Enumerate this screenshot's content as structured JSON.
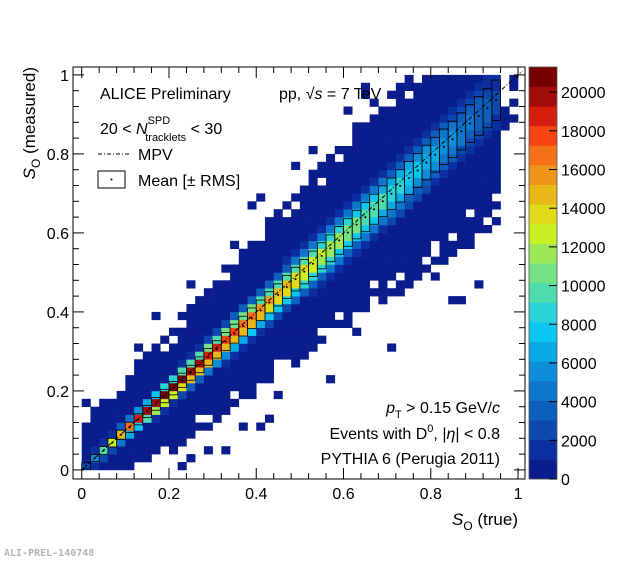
{
  "chart_data": {
    "type": "heatmap",
    "title": "",
    "xlabel": {
      "main": "S",
      "sub": "O",
      "rest": " (true)"
    },
    "ylabel": {
      "main": "S",
      "sub": "O",
      "rest": " (measured)"
    },
    "xlim": [
      -0.02,
      1.016
    ],
    "ylim": [
      -0.023,
      1.02
    ],
    "xticks": [
      "0",
      "0.2",
      "0.4",
      "0.6",
      "0.8",
      "1"
    ],
    "yticks": [
      "0",
      "0.2",
      "0.4",
      "0.6",
      "0.8",
      "1"
    ],
    "bin_width": 0.02,
    "colorbar": {
      "range": [
        0,
        21300
      ],
      "ticks": [
        "0",
        "2000",
        "4000",
        "6000",
        "8000",
        "10000",
        "12000",
        "14000",
        "16000",
        "18000",
        "20000"
      ],
      "colors": [
        "#0a1d8c",
        "#0b2f9e",
        "#0c48ae",
        "#0d5fbe",
        "#0e76cc",
        "#0c8fd8",
        "#09a9e4",
        "#0bc6ee",
        "#2cd3d6",
        "#4edcac",
        "#74e284",
        "#9de858",
        "#c8f024",
        "#dedb1a",
        "#e8b818",
        "#ee9418",
        "#f67018",
        "#f84412",
        "#d41e0e",
        "#a20c08",
        "#760000"
      ]
    },
    "profile": {
      "x": [
        0.01,
        0.03,
        0.05,
        0.07,
        0.09,
        0.11,
        0.13,
        0.15,
        0.17,
        0.19,
        0.21,
        0.23,
        0.25,
        0.27,
        0.29,
        0.31,
        0.33,
        0.35,
        0.37,
        0.39,
        0.41,
        0.43,
        0.45,
        0.47,
        0.49,
        0.51,
        0.53,
        0.55,
        0.57,
        0.59,
        0.61,
        0.63,
        0.65,
        0.67,
        0.69,
        0.71,
        0.73,
        0.75,
        0.77,
        0.79,
        0.81,
        0.83,
        0.85,
        0.87,
        0.89,
        0.91,
        0.93,
        0.95
      ],
      "mean": [
        0.01,
        0.03,
        0.049,
        0.069,
        0.089,
        0.108,
        0.128,
        0.148,
        0.167,
        0.187,
        0.207,
        0.227,
        0.246,
        0.266,
        0.286,
        0.305,
        0.325,
        0.345,
        0.364,
        0.384,
        0.404,
        0.424,
        0.443,
        0.463,
        0.483,
        0.502,
        0.522,
        0.542,
        0.561,
        0.581,
        0.601,
        0.621,
        0.64,
        0.66,
        0.68,
        0.699,
        0.719,
        0.739,
        0.758,
        0.778,
        0.798,
        0.818,
        0.837,
        0.857,
        0.877,
        0.896,
        0.916,
        0.936
      ],
      "rms": [
        0.008,
        0.009,
        0.01,
        0.011,
        0.012,
        0.013,
        0.014,
        0.015,
        0.016,
        0.017,
        0.017,
        0.018,
        0.019,
        0.02,
        0.021,
        0.022,
        0.023,
        0.024,
        0.025,
        0.026,
        0.026,
        0.027,
        0.028,
        0.029,
        0.03,
        0.031,
        0.032,
        0.033,
        0.034,
        0.035,
        0.035,
        0.036,
        0.037,
        0.038,
        0.039,
        0.04,
        0.041,
        0.042,
        0.043,
        0.044,
        0.044,
        0.045,
        0.046,
        0.047,
        0.048,
        0.049,
        0.05,
        0.051
      ],
      "peak": [
        3000,
        6000,
        10000,
        12500,
        15000,
        17000,
        18500,
        19500,
        20500,
        21000,
        21300,
        21000,
        20500,
        20000,
        19500,
        19000,
        18500,
        18000,
        17500,
        17000,
        16500,
        16000,
        15500,
        15000,
        14500,
        14000,
        13500,
        13000,
        12500,
        12000,
        11500,
        11000,
        10500,
        10000,
        9500,
        9000,
        8500,
        8000,
        7500,
        7000,
        6500,
        6000,
        5500,
        5000,
        4500,
        4000,
        3500,
        2500
      ],
      "tail_halfwidth": [
        0.12,
        0.13,
        0.13,
        0.13,
        0.14,
        0.14,
        0.15,
        0.15,
        0.15,
        0.16,
        0.16,
        0.17,
        0.17,
        0.17,
        0.18,
        0.18,
        0.19,
        0.19,
        0.19,
        0.2,
        0.2,
        0.21,
        0.21,
        0.21,
        0.22,
        0.22,
        0.23,
        0.23,
        0.23,
        0.24,
        0.24,
        0.25,
        0.25,
        0.25,
        0.26,
        0.26,
        0.27,
        0.27,
        0.27,
        0.28,
        0.28,
        0.29,
        0.29,
        0.29,
        0.3,
        0.3,
        0.31,
        0.31
      ]
    },
    "legend": {
      "placement": "top-left",
      "entries": [
        {
          "label": "MPV",
          "style": "dash-dot line"
        },
        {
          "label": "Mean [± RMS]",
          "style": "box with dot"
        }
      ]
    },
    "annotations": {
      "experiment": "ALICE Preliminary",
      "system_pre": "pp, ",
      "system_sqrt": "√",
      "system_s": "s",
      "system_post": " = 7 TeV",
      "mult_pre": "20 < ",
      "mult_N": "N",
      "mult_sup": "SPD",
      "mult_sub": "tracklets",
      "mult_post": " < 30",
      "pt_p": "p",
      "pt_sub": "T",
      "pt_post": " > 0.15 GeV/",
      "pt_c": "c",
      "events_pre": "Events with D",
      "events_sup": "0",
      "events_mid": ", |",
      "events_eta": "η",
      "events_post": "| < 0.8",
      "generator": "PYTHIA 6 (Perugia 2011)"
    }
  },
  "watermark": "ALI-PREL-140748"
}
